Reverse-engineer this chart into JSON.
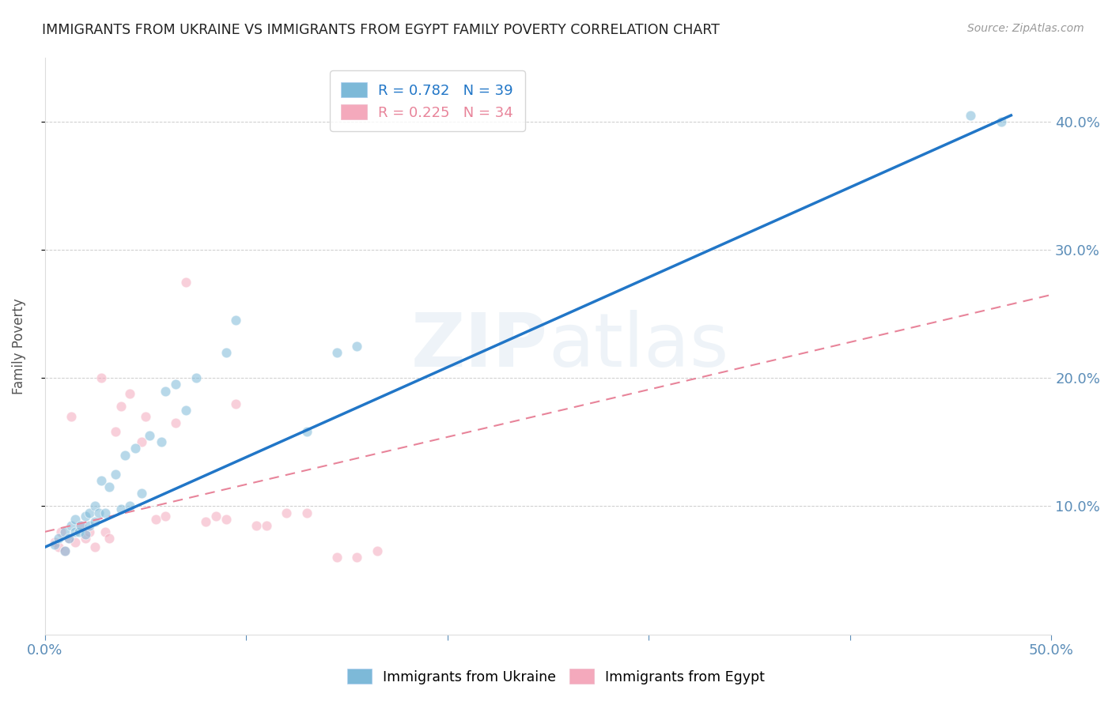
{
  "title": "IMMIGRANTS FROM UKRAINE VS IMMIGRANTS FROM EGYPT FAMILY POVERTY CORRELATION CHART",
  "source": "Source: ZipAtlas.com",
  "xlabel": "",
  "ylabel": "Family Poverty",
  "xlim": [
    0.0,
    0.5
  ],
  "ylim": [
    0.0,
    0.45
  ],
  "ukraine_color": "#7db9d8",
  "egypt_color": "#f4a9bc",
  "ukraine_line_color": "#2176c7",
  "egypt_line_color": "#e8849a",
  "ukraine_R": 0.782,
  "ukraine_N": 39,
  "egypt_R": 0.225,
  "egypt_N": 34,
  "ukraine_line_x0": 0.0,
  "ukraine_line_y0": 0.068,
  "ukraine_line_x1": 0.48,
  "ukraine_line_y1": 0.405,
  "egypt_line_x0": 0.0,
  "egypt_line_y0": 0.08,
  "egypt_line_x1": 0.5,
  "egypt_line_y1": 0.265,
  "ukraine_scatter_x": [
    0.005,
    0.007,
    0.01,
    0.01,
    0.012,
    0.013,
    0.015,
    0.015,
    0.017,
    0.018,
    0.02,
    0.02,
    0.022,
    0.022,
    0.025,
    0.025,
    0.027,
    0.028,
    0.03,
    0.032,
    0.035,
    0.038,
    0.04,
    0.042,
    0.045,
    0.048,
    0.052,
    0.058,
    0.06,
    0.065,
    0.07,
    0.075,
    0.09,
    0.095,
    0.13,
    0.145,
    0.155,
    0.46,
    0.475
  ],
  "ukraine_scatter_y": [
    0.07,
    0.075,
    0.065,
    0.08,
    0.075,
    0.085,
    0.08,
    0.09,
    0.08,
    0.085,
    0.078,
    0.092,
    0.085,
    0.095,
    0.088,
    0.1,
    0.095,
    0.12,
    0.095,
    0.115,
    0.125,
    0.098,
    0.14,
    0.1,
    0.145,
    0.11,
    0.155,
    0.15,
    0.19,
    0.195,
    0.175,
    0.2,
    0.22,
    0.245,
    0.158,
    0.22,
    0.225,
    0.405,
    0.4
  ],
  "egypt_scatter_x": [
    0.005,
    0.007,
    0.008,
    0.01,
    0.012,
    0.013,
    0.015,
    0.018,
    0.02,
    0.022,
    0.025,
    0.028,
    0.03,
    0.032,
    0.035,
    0.038,
    0.042,
    0.048,
    0.05,
    0.055,
    0.06,
    0.065,
    0.07,
    0.08,
    0.085,
    0.09,
    0.095,
    0.105,
    0.11,
    0.12,
    0.13,
    0.145,
    0.155,
    0.165
  ],
  "egypt_scatter_y": [
    0.072,
    0.068,
    0.08,
    0.065,
    0.075,
    0.17,
    0.072,
    0.085,
    0.075,
    0.08,
    0.068,
    0.2,
    0.08,
    0.075,
    0.158,
    0.178,
    0.188,
    0.15,
    0.17,
    0.09,
    0.092,
    0.165,
    0.275,
    0.088,
    0.092,
    0.09,
    0.18,
    0.085,
    0.085,
    0.095,
    0.095,
    0.06,
    0.06,
    0.065
  ],
  "watermark": "ZIPatlas",
  "background_color": "#ffffff",
  "grid_color": "#cccccc",
  "title_color": "#222222",
  "legend_ukraine_label": "R = 0.782   N = 39",
  "legend_egypt_label": "R = 0.225   N = 34",
  "marker_size": 85,
  "marker_alpha": 0.55
}
